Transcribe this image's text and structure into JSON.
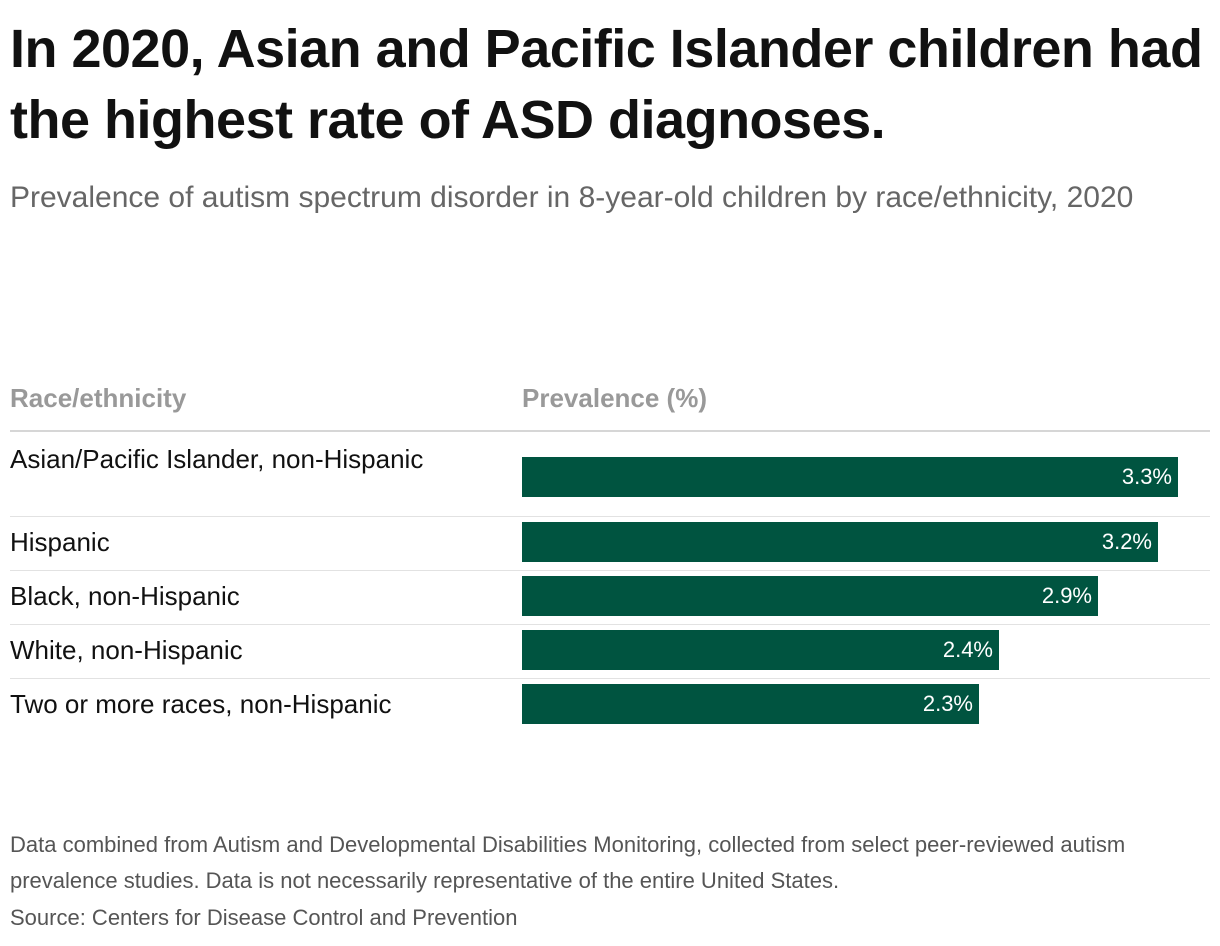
{
  "title": "In 2020, Asian and Pacific Islander children had the highest rate of ASD diagnoses.",
  "subtitle": "Prevalence of autism spectrum disorder in 8-year-old children by race/ethnicity, 2020",
  "bar_color": "#005440",
  "chart_data": {
    "type": "bar",
    "orientation": "horizontal",
    "title": "In 2020, Asian and Pacific Islander children had the highest rate of ASD diagnoses.",
    "subtitle": "Prevalence of autism spectrum disorder in 8-year-old children by race/ethnicity, 2020",
    "category_header": "Race/ethnicity",
    "value_header": "Prevalence (%)",
    "categories": [
      "Asian/Pacific Islander, non-Hispanic",
      "Hispanic",
      "Black, non-Hispanic",
      "White, non-Hispanic",
      "Two or more races, non-Hispanic"
    ],
    "values": [
      3.3,
      3.2,
      2.9,
      2.4,
      2.3
    ],
    "value_labels": [
      "3.3%",
      "3.2%",
      "2.9%",
      "2.4%",
      "2.3%"
    ],
    "xlim": [
      0,
      3.45
    ],
    "grid": false,
    "legend": "none"
  },
  "footnote": "Data combined from Autism and Developmental Disabilities Monitoring, collected from select peer-reviewed autism prevalence studies. Data is not necessarily representative of the entire United States.",
  "source": "Source: Centers for Disease Control and Prevention"
}
